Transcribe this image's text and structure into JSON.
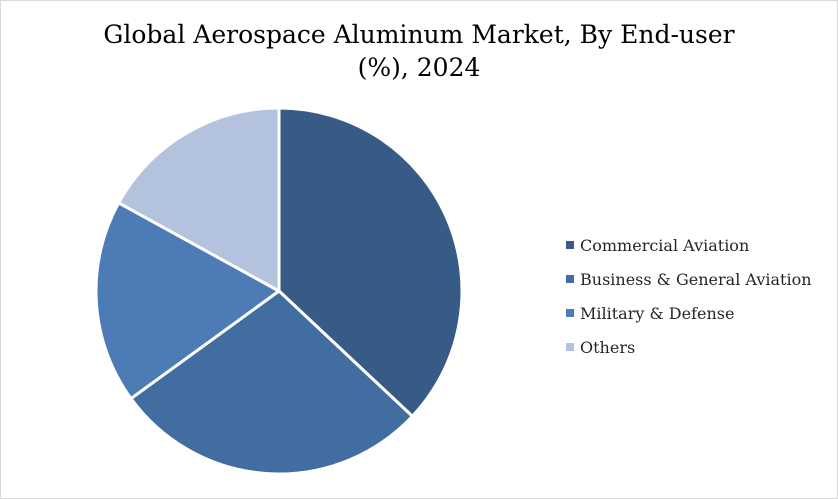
{
  "chart_data": {
    "type": "pie",
    "title_line1": "Global Aerospace Aluminum Market, By End-user",
    "title_line2": "(%), 2024",
    "categories": [
      "Commercial Aviation",
      "Business & General Aviation",
      "Military & Defense",
      "Others"
    ],
    "values": [
      37.0,
      28.0,
      18.0,
      17.0
    ],
    "colors": [
      "#375A87",
      "#416DA0",
      "#4D7BB5",
      "#B4C3DD"
    ],
    "start_angle_deg": 0,
    "direction": "clockwise",
    "legend_position": "right"
  }
}
